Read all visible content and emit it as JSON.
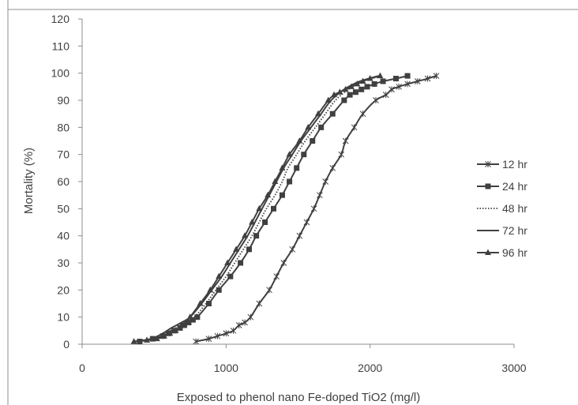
{
  "chart_data": {
    "type": "line",
    "title": "",
    "xlabel": "Exposed to phenol nano Fe-doped TiO2 (mg/l)",
    "ylabel": "Mortality (%)",
    "xlim": [
      0,
      3000
    ],
    "ylim": [
      0,
      120
    ],
    "x_ticks": [
      "0",
      "1000",
      "2000",
      "3000"
    ],
    "y_ticks": [
      "0",
      "10",
      "20",
      "30",
      "40",
      "50",
      "60",
      "70",
      "80",
      "90",
      "100",
      "110",
      "120"
    ],
    "grid": false,
    "legend_position": "right",
    "series": [
      {
        "name": "12 hr",
        "marker": "star",
        "line_style": "solid",
        "color": "#404040",
        "points": [
          [
            790,
            1
          ],
          [
            880,
            2
          ],
          [
            940,
            3
          ],
          [
            1000,
            4
          ],
          [
            1050,
            5
          ],
          [
            1090,
            7
          ],
          [
            1130,
            8
          ],
          [
            1170,
            10
          ],
          [
            1230,
            15
          ],
          [
            1300,
            20
          ],
          [
            1350,
            25
          ],
          [
            1400,
            30
          ],
          [
            1460,
            35
          ],
          [
            1510,
            40
          ],
          [
            1560,
            45
          ],
          [
            1610,
            50
          ],
          [
            1650,
            55
          ],
          [
            1690,
            60
          ],
          [
            1740,
            65
          ],
          [
            1800,
            70
          ],
          [
            1830,
            75
          ],
          [
            1890,
            80
          ],
          [
            1950,
            85
          ],
          [
            2040,
            90
          ],
          [
            2110,
            92
          ],
          [
            2150,
            94
          ],
          [
            2200,
            95
          ],
          [
            2260,
            96
          ],
          [
            2330,
            97
          ],
          [
            2400,
            98
          ],
          [
            2460,
            99
          ]
        ]
      },
      {
        "name": "24 hr",
        "marker": "square",
        "line_style": "solid",
        "color": "#404040",
        "points": [
          [
            400,
            1
          ],
          [
            490,
            2
          ],
          [
            560,
            3
          ],
          [
            600,
            4
          ],
          [
            640,
            5
          ],
          [
            680,
            6
          ],
          [
            710,
            7
          ],
          [
            740,
            8
          ],
          [
            770,
            9
          ],
          [
            800,
            10
          ],
          [
            880,
            15
          ],
          [
            950,
            20
          ],
          [
            1030,
            25
          ],
          [
            1100,
            30
          ],
          [
            1160,
            35
          ],
          [
            1210,
            40
          ],
          [
            1270,
            45
          ],
          [
            1330,
            50
          ],
          [
            1390,
            55
          ],
          [
            1440,
            60
          ],
          [
            1490,
            65
          ],
          [
            1540,
            70
          ],
          [
            1600,
            75
          ],
          [
            1660,
            80
          ],
          [
            1740,
            85
          ],
          [
            1820,
            90
          ],
          [
            1860,
            92
          ],
          [
            1900,
            93
          ],
          [
            1940,
            94
          ],
          [
            1980,
            95
          ],
          [
            2030,
            96
          ],
          [
            2090,
            97
          ],
          [
            2180,
            98
          ],
          [
            2260,
            99
          ]
        ]
      },
      {
        "name": "48 hr",
        "marker": "none",
        "line_style": "dotted",
        "color": "#404040",
        "points": [
          [
            380,
            1
          ],
          [
            500,
            2
          ],
          [
            580,
            4
          ],
          [
            650,
            6
          ],
          [
            720,
            8
          ],
          [
            780,
            10
          ],
          [
            860,
            15
          ],
          [
            930,
            20
          ],
          [
            1000,
            25
          ],
          [
            1060,
            30
          ],
          [
            1120,
            35
          ],
          [
            1180,
            40
          ],
          [
            1230,
            45
          ],
          [
            1280,
            50
          ],
          [
            1340,
            55
          ],
          [
            1390,
            60
          ],
          [
            1430,
            65
          ],
          [
            1490,
            70
          ],
          [
            1550,
            75
          ],
          [
            1620,
            80
          ],
          [
            1690,
            85
          ],
          [
            1760,
            90
          ],
          [
            1850,
            94
          ],
          [
            1950,
            97
          ],
          [
            2080,
            99
          ]
        ]
      },
      {
        "name": "72 hr",
        "marker": "none",
        "line_style": "solid",
        "color": "#404040",
        "points": [
          [
            360,
            1
          ],
          [
            480,
            2
          ],
          [
            560,
            4
          ],
          [
            620,
            6
          ],
          [
            690,
            8
          ],
          [
            750,
            10
          ],
          [
            830,
            15
          ],
          [
            900,
            20
          ],
          [
            970,
            25
          ],
          [
            1030,
            30
          ],
          [
            1090,
            35
          ],
          [
            1150,
            40
          ],
          [
            1200,
            45
          ],
          [
            1250,
            50
          ],
          [
            1300,
            55
          ],
          [
            1350,
            60
          ],
          [
            1400,
            65
          ],
          [
            1460,
            70
          ],
          [
            1520,
            75
          ],
          [
            1590,
            80
          ],
          [
            1660,
            85
          ],
          [
            1730,
            90
          ],
          [
            1820,
            94
          ],
          [
            1930,
            97
          ],
          [
            2060,
            99
          ]
        ]
      },
      {
        "name": "96 hr",
        "marker": "triangle",
        "line_style": "solid",
        "color": "#404040",
        "points": [
          [
            360,
            1
          ],
          [
            450,
            1.5
          ],
          [
            520,
            2
          ],
          [
            570,
            3
          ],
          [
            610,
            4
          ],
          [
            650,
            5
          ],
          [
            690,
            7
          ],
          [
            720,
            8
          ],
          [
            750,
            10
          ],
          [
            820,
            15
          ],
          [
            890,
            20
          ],
          [
            950,
            25
          ],
          [
            1010,
            30
          ],
          [
            1070,
            35
          ],
          [
            1130,
            40
          ],
          [
            1180,
            45
          ],
          [
            1230,
            50
          ],
          [
            1290,
            55
          ],
          [
            1340,
            60
          ],
          [
            1390,
            65
          ],
          [
            1440,
            70
          ],
          [
            1510,
            75
          ],
          [
            1570,
            80
          ],
          [
            1640,
            85
          ],
          [
            1710,
            90
          ],
          [
            1750,
            92
          ],
          [
            1790,
            93
          ],
          [
            1830,
            94
          ],
          [
            1870,
            95
          ],
          [
            1910,
            96
          ],
          [
            1950,
            97
          ],
          [
            2000,
            98
          ],
          [
            2070,
            99
          ]
        ]
      }
    ]
  }
}
